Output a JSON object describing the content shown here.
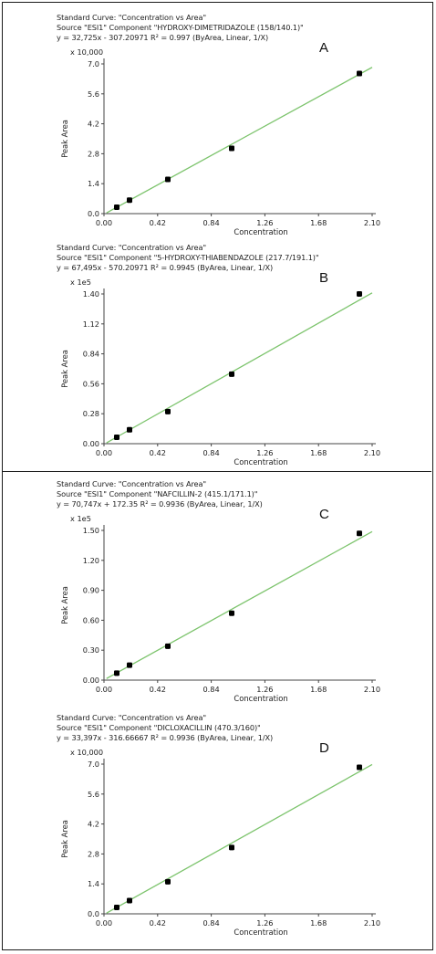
{
  "chart_data": [
    {
      "type": "scatter",
      "panel_label": "A",
      "title": "Standard Curve: \"Concentration vs Area\"",
      "source": "Source \"ESI1\" Component \"HYDROXY-DIMETRIDAZOLE (158/140.1)\"",
      "equation": "y = 32,725x - 307.20971    R² = 0.997  (ByArea, Linear, 1/X)",
      "multiplier": "x 10,000",
      "xlabel": "Concentration",
      "ylabel": "Peak Area",
      "xlim": [
        0,
        2.1
      ],
      "ylim": [
        0,
        7.0
      ],
      "xticks": [
        "0.00",
        "0.42",
        "0.84",
        "1.26",
        "1.68",
        "2.10"
      ],
      "yticks": [
        "0.0",
        "1.4",
        "2.8",
        "4.2",
        "5.6",
        "7.0"
      ],
      "points": {
        "x": [
          0.1,
          0.2,
          0.5,
          1.0,
          2.0
        ],
        "y": [
          0.3,
          0.63,
          1.6,
          3.05,
          6.55
        ]
      },
      "fit_line": {
        "x": [
          0.02,
          2.1
        ],
        "y": [
          0.035,
          6.84
        ]
      },
      "point_color": "#000000",
      "line_color": "#7dc46d"
    },
    {
      "type": "scatter",
      "panel_label": "B",
      "title": "Standard Curve: \"Concentration vs Area\"",
      "source": "Source \"ESI1\" Component \"5-HYDROXY-THIABENDAZOLE (217.7/191.1)\"",
      "equation": "y = 67,495x - 570.20971    R² = 0.9945  (ByArea, Linear, 1/X)",
      "multiplier": "x 1e5",
      "xlabel": "Concentration",
      "ylabel": "Peak Area",
      "xlim": [
        0,
        2.1
      ],
      "ylim": [
        0,
        1.4
      ],
      "xticks": [
        "0.00",
        "0.42",
        "0.84",
        "1.26",
        "1.68",
        "2.10"
      ],
      "yticks": [
        "0.00",
        "0.28",
        "0.56",
        "0.84",
        "1.12",
        "1.40"
      ],
      "points": {
        "x": [
          0.1,
          0.2,
          0.5,
          1.0,
          2.0
        ],
        "y": [
          0.06,
          0.13,
          0.3,
          0.65,
          1.4
        ]
      },
      "fit_line": {
        "x": [
          0.02,
          2.1
        ],
        "y": [
          0.008,
          1.41
        ]
      },
      "point_color": "#000000",
      "line_color": "#7dc46d"
    },
    {
      "type": "scatter",
      "panel_label": "C",
      "title": "Standard Curve: \"Concentration vs Area\"",
      "source": "Source \"ESI1\" Component \"NAFCILLIN-2 (415.1/171.1)\"",
      "equation": "y = 70,747x + 172.35    R² = 0.9936  (ByArea, Linear, 1/X)",
      "multiplier": "x 1e5",
      "xlabel": "Concentration",
      "ylabel": "Peak Area",
      "xlim": [
        0,
        2.1
      ],
      "ylim": [
        0,
        1.5
      ],
      "xticks": [
        "0.00",
        "0.42",
        "0.84",
        "1.26",
        "1.68",
        "2.10"
      ],
      "yticks": [
        "0.00",
        "0.30",
        "0.60",
        "0.90",
        "1.20",
        "1.50"
      ],
      "points": {
        "x": [
          0.1,
          0.2,
          0.5,
          1.0,
          2.0
        ],
        "y": [
          0.07,
          0.15,
          0.34,
          0.67,
          1.47
        ]
      },
      "fit_line": {
        "x": [
          0.02,
          2.1
        ],
        "y": [
          0.016,
          1.488
        ]
      },
      "point_color": "#000000",
      "line_color": "#7dc46d"
    },
    {
      "type": "scatter",
      "panel_label": "D",
      "title": "Standard Curve: \"Concentration vs Area\"",
      "source": "Source \"ESI1\" Component \"DICLOXACILLIN (470.3/160)\"",
      "equation": "y = 33,397x - 316.66667    R² = 0.9936  (ByArea, Linear, 1/X)",
      "multiplier": "x 10,000",
      "xlabel": "Concentration",
      "ylabel": "Peak Area",
      "xlim": [
        0,
        2.1
      ],
      "ylim": [
        0,
        7.0
      ],
      "xticks": [
        "0.00",
        "0.42",
        "0.84",
        "1.26",
        "1.68",
        "2.10"
      ],
      "yticks": [
        "0.0",
        "1.4",
        "2.8",
        "4.2",
        "5.6",
        "7.0"
      ],
      "points": {
        "x": [
          0.1,
          0.2,
          0.5,
          1.0,
          2.0
        ],
        "y": [
          0.3,
          0.62,
          1.5,
          3.1,
          6.85
        ]
      },
      "fit_line": {
        "x": [
          0.02,
          2.1
        ],
        "y": [
          0.035,
          6.98
        ]
      },
      "point_color": "#000000",
      "line_color": "#7dc46d"
    }
  ]
}
